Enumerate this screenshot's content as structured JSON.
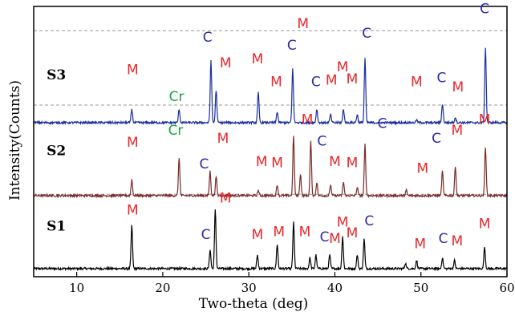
{
  "chart_data": {
    "type": "line",
    "title": "",
    "xlabel": "Two-theta (deg)",
    "ylabel": "Intensity(Counts)",
    "xlim": [
      5,
      60
    ],
    "ylim": [
      0,
      1
    ],
    "x_ticks": [
      10,
      20,
      30,
      40,
      50,
      60
    ],
    "y_ticks": [],
    "grid": false,
    "legend": "none",
    "colors": {
      "S1": "#000000",
      "S2": "#7a2a2a",
      "S3": "#1a2ea0",
      "M": "#e8262a",
      "C": "#2a2aa8",
      "Cr": "#1aa63a",
      "dashed": "#999999"
    },
    "series": [
      {
        "name": "S1",
        "baseline": 0.03,
        "noise": 0.004,
        "peaks": [
          [
            16.4,
            0.16
          ],
          [
            25.5,
            0.07
          ],
          [
            26.1,
            0.22
          ],
          [
            31.0,
            0.05
          ],
          [
            33.3,
            0.09
          ],
          [
            35.2,
            0.17
          ],
          [
            37.1,
            0.04
          ],
          [
            37.8,
            0.05
          ],
          [
            39.4,
            0.05
          ],
          [
            40.9,
            0.12
          ],
          [
            42.6,
            0.05
          ],
          [
            43.4,
            0.11
          ],
          [
            48.2,
            0.02
          ],
          [
            49.5,
            0.03
          ],
          [
            52.5,
            0.04
          ],
          [
            53.9,
            0.03
          ],
          [
            57.4,
            0.08
          ]
        ]
      },
      {
        "name": "S2",
        "baseline": 0.3,
        "noise": 0.004,
        "peaks": [
          [
            16.4,
            0.06
          ],
          [
            21.9,
            0.14
          ],
          [
            25.5,
            0.09
          ],
          [
            26.2,
            0.07
          ],
          [
            31.1,
            0.02
          ],
          [
            33.3,
            0.04
          ],
          [
            35.2,
            0.22
          ],
          [
            36.0,
            0.08
          ],
          [
            37.2,
            0.2
          ],
          [
            37.9,
            0.05
          ],
          [
            39.5,
            0.04
          ],
          [
            41.0,
            0.05
          ],
          [
            42.6,
            0.03
          ],
          [
            43.5,
            0.19
          ],
          [
            48.3,
            0.02
          ],
          [
            52.5,
            0.09
          ],
          [
            54.0,
            0.11
          ],
          [
            57.5,
            0.18
          ]
        ]
      },
      {
        "name": "S3",
        "baseline": 0.57,
        "noise": 0.004,
        "peaks": [
          [
            16.4,
            0.05
          ],
          [
            21.9,
            0.05
          ],
          [
            25.6,
            0.23
          ],
          [
            26.2,
            0.12
          ],
          [
            31.1,
            0.11
          ],
          [
            33.3,
            0.04
          ],
          [
            35.1,
            0.2
          ],
          [
            37.9,
            0.05
          ],
          [
            39.5,
            0.03
          ],
          [
            41.0,
            0.05
          ],
          [
            42.6,
            0.03
          ],
          [
            43.5,
            0.24
          ],
          [
            49.5,
            0.01
          ],
          [
            52.5,
            0.07
          ],
          [
            54.0,
            0.02
          ],
          [
            57.5,
            0.28
          ]
        ]
      }
    ],
    "dashed_lines": [
      0.305,
      0.635,
      0.91
    ],
    "sample_labels": [
      {
        "text": "S1",
        "x": 6.5,
        "y": 0.17
      },
      {
        "text": "S2",
        "x": 6.5,
        "y": 0.45
      },
      {
        "text": "S3",
        "x": 6.5,
        "y": 0.73
      }
    ],
    "annotations": [
      {
        "text": "M",
        "x": 16.5,
        "y": 0.23,
        "type": "M"
      },
      {
        "text": "C",
        "x": 25.0,
        "y": 0.14,
        "type": "C"
      },
      {
        "text": "M",
        "x": 27.3,
        "y": 0.275,
        "type": "M"
      },
      {
        "text": "M",
        "x": 31.0,
        "y": 0.14,
        "type": "M"
      },
      {
        "text": "M",
        "x": 33.5,
        "y": 0.15,
        "type": "M"
      },
      {
        "text": "M",
        "x": 36.5,
        "y": 0.15,
        "type": "M"
      },
      {
        "text": "C",
        "x": 38.8,
        "y": 0.13,
        "type": "C"
      },
      {
        "text": "M",
        "x": 40.0,
        "y": 0.125,
        "type": "M"
      },
      {
        "text": "M",
        "x": 40.9,
        "y": 0.185,
        "type": "M"
      },
      {
        "text": "M",
        "x": 42.0,
        "y": 0.145,
        "type": "M"
      },
      {
        "text": "C",
        "x": 44.0,
        "y": 0.19,
        "type": "C"
      },
      {
        "text": "M",
        "x": 49.9,
        "y": 0.105,
        "type": "M"
      },
      {
        "text": "C",
        "x": 52.6,
        "y": 0.125,
        "type": "C"
      },
      {
        "text": "M",
        "x": 54.2,
        "y": 0.115,
        "type": "M"
      },
      {
        "text": "M",
        "x": 57.4,
        "y": 0.18,
        "type": "M"
      },
      {
        "text": "M",
        "x": 16.5,
        "y": 0.48,
        "type": "M"
      },
      {
        "text": "Cr",
        "x": 21.5,
        "y": 0.525,
        "type": "Cr"
      },
      {
        "text": "C",
        "x": 24.8,
        "y": 0.4,
        "type": "C"
      },
      {
        "text": "M",
        "x": 27.0,
        "y": 0.495,
        "type": "M"
      },
      {
        "text": "M",
        "x": 31.5,
        "y": 0.41,
        "type": "M"
      },
      {
        "text": "M",
        "x": 33.3,
        "y": 0.405,
        "type": "M"
      },
      {
        "text": "M",
        "x": 36.8,
        "y": 0.565,
        "type": "M"
      },
      {
        "text": "C",
        "x": 38.5,
        "y": 0.485,
        "type": "C"
      },
      {
        "text": "M",
        "x": 40.0,
        "y": 0.41,
        "type": "M"
      },
      {
        "text": "M",
        "x": 42.0,
        "y": 0.405,
        "type": "M"
      },
      {
        "text": "C",
        "x": 45.5,
        "y": 0.55,
        "type": "C"
      },
      {
        "text": "M",
        "x": 50.2,
        "y": 0.385,
        "type": "M"
      },
      {
        "text": "C",
        "x": 51.8,
        "y": 0.495,
        "type": "C"
      },
      {
        "text": "M",
        "x": 54.2,
        "y": 0.525,
        "type": "M"
      },
      {
        "text": "M",
        "x": 57.4,
        "y": 0.565,
        "type": "M"
      },
      {
        "text": "M",
        "x": 16.5,
        "y": 0.75,
        "type": "M"
      },
      {
        "text": "Cr",
        "x": 21.6,
        "y": 0.65,
        "type": "Cr"
      },
      {
        "text": "C",
        "x": 25.2,
        "y": 0.87,
        "type": "C"
      },
      {
        "text": "M",
        "x": 27.3,
        "y": 0.775,
        "type": "M"
      },
      {
        "text": "M",
        "x": 31.0,
        "y": 0.79,
        "type": "M"
      },
      {
        "text": "M",
        "x": 33.2,
        "y": 0.705,
        "type": "M"
      },
      {
        "text": "C",
        "x": 35.0,
        "y": 0.84,
        "type": "C"
      },
      {
        "text": "M",
        "x": 36.3,
        "y": 0.92,
        "type": "M"
      },
      {
        "text": "C",
        "x": 37.8,
        "y": 0.705,
        "type": "C"
      },
      {
        "text": "M",
        "x": 39.6,
        "y": 0.71,
        "type": "M"
      },
      {
        "text": "M",
        "x": 40.9,
        "y": 0.76,
        "type": "M"
      },
      {
        "text": "M",
        "x": 42.0,
        "y": 0.715,
        "type": "M"
      },
      {
        "text": "C",
        "x": 43.7,
        "y": 0.885,
        "type": "C"
      },
      {
        "text": "M",
        "x": 49.5,
        "y": 0.705,
        "type": "M"
      },
      {
        "text": "C",
        "x": 52.4,
        "y": 0.72,
        "type": "C"
      },
      {
        "text": "M",
        "x": 54.3,
        "y": 0.685,
        "type": "M"
      },
      {
        "text": "C",
        "x": 57.4,
        "y": 0.975,
        "type": "C"
      }
    ]
  }
}
